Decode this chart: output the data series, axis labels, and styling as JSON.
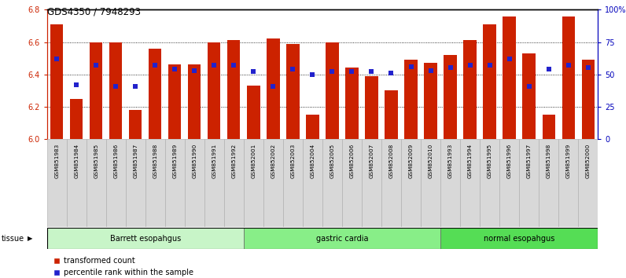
{
  "title": "GDS4350 / 7948293",
  "samples": [
    "GSM851983",
    "GSM851984",
    "GSM851985",
    "GSM851986",
    "GSM851987",
    "GSM851988",
    "GSM851989",
    "GSM851990",
    "GSM851991",
    "GSM851992",
    "GSM852001",
    "GSM852002",
    "GSM852003",
    "GSM852004",
    "GSM852005",
    "GSM852006",
    "GSM852007",
    "GSM852008",
    "GSM852009",
    "GSM852010",
    "GSM851993",
    "GSM851994",
    "GSM851995",
    "GSM851996",
    "GSM851997",
    "GSM851998",
    "GSM851999",
    "GSM852000"
  ],
  "red_values": [
    6.71,
    6.25,
    6.6,
    6.6,
    6.18,
    6.56,
    6.46,
    6.46,
    6.6,
    6.61,
    6.33,
    6.62,
    6.59,
    6.15,
    6.6,
    6.44,
    6.39,
    6.3,
    6.49,
    6.47,
    6.52,
    6.61,
    6.71,
    6.76,
    6.53,
    6.15,
    6.76,
    6.49
  ],
  "blue_pct": [
    62,
    42,
    57,
    41,
    41,
    57,
    54,
    53,
    57,
    57,
    52,
    41,
    54,
    50,
    52,
    52,
    52,
    51,
    56,
    53,
    55,
    57,
    57,
    62,
    41,
    54,
    57,
    55
  ],
  "groups": [
    {
      "label": "Barrett esopahgus",
      "start": 0,
      "end": 9,
      "color": "#c8f5c8"
    },
    {
      "label": "gastric cardia",
      "start": 10,
      "end": 19,
      "color": "#88ee88"
    },
    {
      "label": "normal esopahgus",
      "start": 20,
      "end": 27,
      "color": "#55dd55"
    }
  ],
  "ylim_left": [
    6.0,
    6.8
  ],
  "ylim_right": [
    0,
    100
  ],
  "yticks_left": [
    6.0,
    6.2,
    6.4,
    6.6,
    6.8
  ],
  "yticks_right": [
    0,
    25,
    50,
    75,
    100
  ],
  "bar_color_red": "#cc2200",
  "bar_color_blue": "#2222cc",
  "ylabel_right_color": "#0000bb"
}
